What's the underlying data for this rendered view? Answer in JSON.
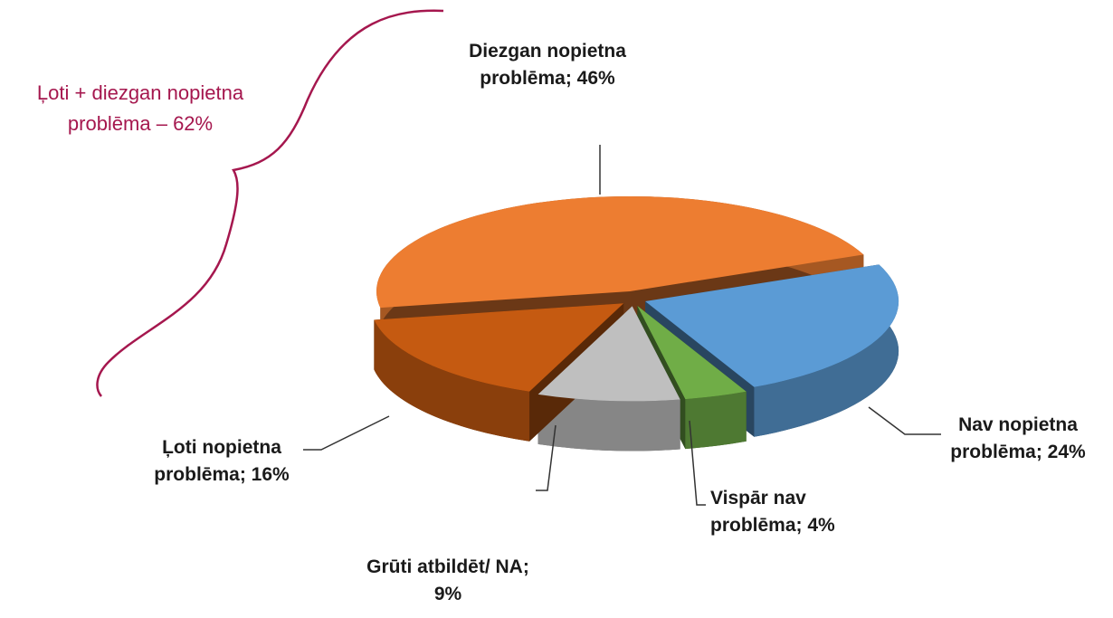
{
  "chart_data": {
    "type": "pie",
    "values": [
      46,
      24,
      4,
      9,
      16
    ],
    "value_labels": [
      "Diezgan nopietna problēma; 46%",
      "Nav nopietna problēma; 24%",
      "Vispār nav problēma; 4%",
      "Grūti atbildēt/ NA; 9%",
      "Ļoti nopietna problēma; 16%"
    ],
    "colors": [
      "#ed7d31",
      "#5b9bd5",
      "#70ad47",
      "#bfbfbf",
      "#c55a11"
    ],
    "annotation": "Ļoti + diezgan nopietna problēma – 62%"
  }
}
